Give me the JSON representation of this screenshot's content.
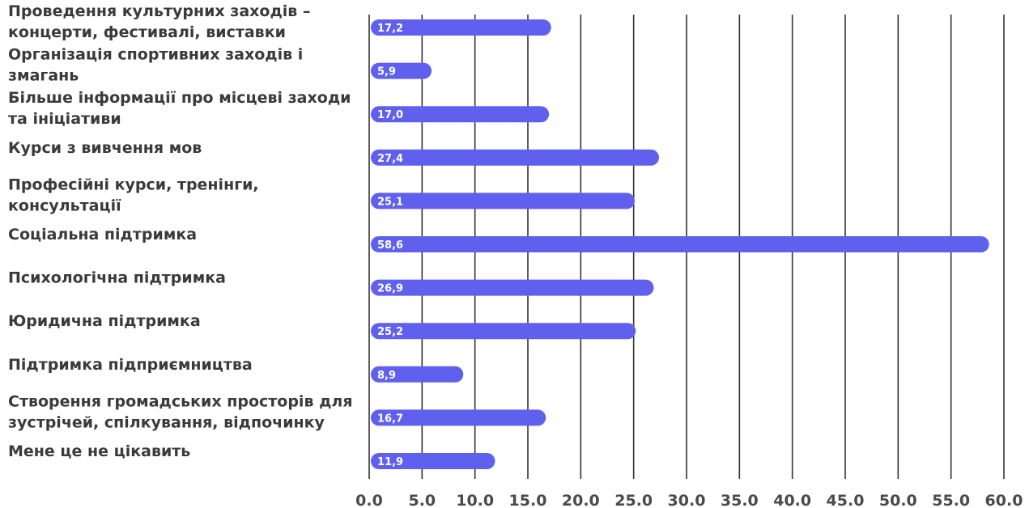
{
  "chart_data": {
    "type": "bar",
    "orientation": "horizontal",
    "categories": [
      [
        "Проведення культурних заходів –",
        "концерти, фестивалі, виставки"
      ],
      [
        "Організація спортивних заходів і",
        "змагань"
      ],
      [
        "Більше інформації про місцеві заходи",
        "та ініціативи"
      ],
      [
        "Курси з вивчення мов"
      ],
      [
        "Професійні курси, тренінги,",
        "консультації"
      ],
      [
        "Соціальна підтримка"
      ],
      [
        "Психологічна підтримка"
      ],
      [
        "Юридична підтримка"
      ],
      [
        "Підтримка підприємництва"
      ],
      [
        "Створення громадських просторів для",
        "зустрічей, спілкування, відпочинку"
      ],
      [
        "Мене це не цікавить"
      ]
    ],
    "values": [
      17.2,
      5.9,
      17.0,
      27.4,
      25.1,
      58.6,
      26.9,
      25.2,
      8.9,
      16.7,
      11.9
    ],
    "value_labels": [
      "17,2",
      "5,9",
      "17,0",
      "27,4",
      "25,1",
      "58,6",
      "26,9",
      "25,2",
      "8,9",
      "16,7",
      "11,9"
    ],
    "x_ticks": [
      "0.0",
      "5.0",
      "10.0",
      "15.0",
      "20.0",
      "25.0",
      "30.0",
      "35.0",
      "40.0",
      "45.0",
      "50.0",
      "55.0",
      "60.0"
    ],
    "xlim": [
      0,
      60
    ],
    "grid": true,
    "bar_color": "#6060ee"
  }
}
